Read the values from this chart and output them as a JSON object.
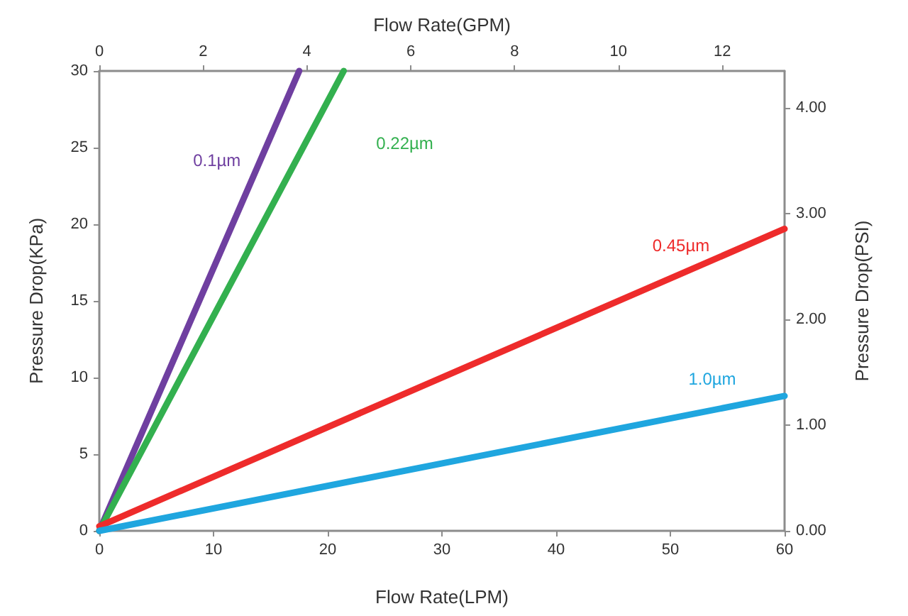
{
  "chart_data": {
    "type": "line",
    "xlabel": "Flow Rate(LPM)",
    "ylabel": "Pressure Drop(KPa)",
    "x2label": "Flow Rate(GPM)",
    "y2label": "Pressure Drop(PSI)",
    "xlim": [
      0,
      60
    ],
    "xticks": [
      0,
      10,
      20,
      30,
      40,
      50,
      60
    ],
    "ylim": [
      0,
      30
    ],
    "yticks": [
      0,
      5,
      10,
      15,
      20,
      25,
      30
    ],
    "x2lim": [
      0,
      13.2
    ],
    "x2ticks": [
      0,
      2,
      4,
      6,
      8,
      10,
      12
    ],
    "y2lim": [
      0,
      4.35
    ],
    "y2ticks": [
      {
        "value": 0,
        "label": "0.00"
      },
      {
        "value": 1,
        "label": "1.00"
      },
      {
        "value": 2,
        "label": "2.00"
      },
      {
        "value": 3,
        "label": "3.00"
      },
      {
        "value": 4,
        "label": "4.00"
      }
    ],
    "grid": false,
    "legend": false,
    "marker": "none",
    "line_style": "solid",
    "series": [
      {
        "name": "0.1µm",
        "color": "#6f3fa0",
        "x": [
          0,
          17.5
        ],
        "values": [
          0,
          30
        ]
      },
      {
        "name": "0.22µm",
        "color": "#33b04f",
        "x": [
          0,
          21.4
        ],
        "values": [
          0,
          30
        ]
      },
      {
        "name": "0.45µm",
        "color": "#ee2b2b",
        "x": [
          0,
          60
        ],
        "values": [
          0.3,
          19.7
        ]
      },
      {
        "name": "1.0µm",
        "color": "#1fa6df",
        "x": [
          0,
          60
        ],
        "values": [
          0,
          8.8
        ]
      }
    ]
  }
}
